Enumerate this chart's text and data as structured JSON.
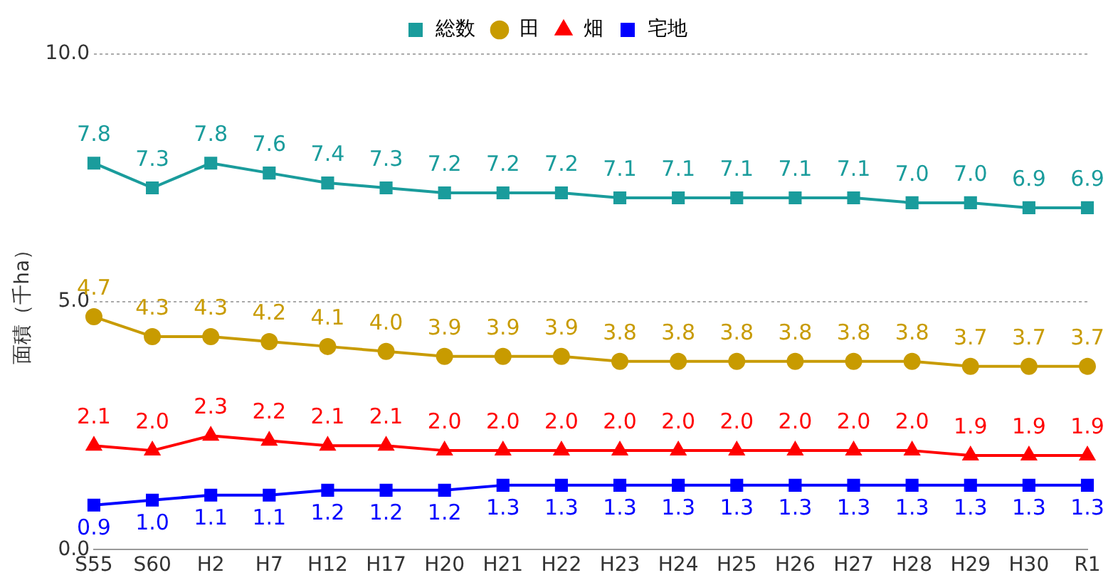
{
  "chart_data": {
    "type": "line",
    "ylabel": "面積（千ha）",
    "categories": [
      "S55",
      "S60",
      "H2",
      "H7",
      "H12",
      "H17",
      "H20",
      "H21",
      "H22",
      "H23",
      "H24",
      "H25",
      "H26",
      "H27",
      "H28",
      "H29",
      "H30",
      "R1"
    ],
    "series": [
      {
        "name": "総数",
        "color": "#1a9c9c",
        "marker": "square",
        "values": [
          7.8,
          7.3,
          7.8,
          7.6,
          7.4,
          7.3,
          7.2,
          7.2,
          7.2,
          7.1,
          7.1,
          7.1,
          7.1,
          7.1,
          7.0,
          7.0,
          6.9,
          6.9
        ],
        "value_labels": [
          "7.8",
          "7.3",
          "7.8",
          "7.6",
          "7.4",
          "7.3",
          "7.2",
          "7.2",
          "7.2",
          "7.1",
          "7.1",
          "7.1",
          "7.1",
          "7.1",
          "7.0",
          "7.0",
          "6.9",
          "6.9"
        ]
      },
      {
        "name": "田",
        "color": "#c89b00",
        "marker": "circle",
        "values": [
          4.7,
          4.3,
          4.3,
          4.2,
          4.1,
          4.0,
          3.9,
          3.9,
          3.9,
          3.8,
          3.8,
          3.8,
          3.8,
          3.8,
          3.8,
          3.7,
          3.7,
          3.7
        ],
        "value_labels": [
          "4.7",
          "4.3",
          "4.3",
          "4.2",
          "4.1",
          "4.0",
          "3.9",
          "3.9",
          "3.9",
          "3.8",
          "3.8",
          "3.8",
          "3.8",
          "3.8",
          "3.8",
          "3.7",
          "3.7",
          "3.7"
        ]
      },
      {
        "name": "畑",
        "color": "#ff0000",
        "marker": "triangle",
        "values": [
          2.1,
          2.0,
          2.3,
          2.2,
          2.1,
          2.1,
          2.0,
          2.0,
          2.0,
          2.0,
          2.0,
          2.0,
          2.0,
          2.0,
          2.0,
          1.9,
          1.9,
          1.9
        ],
        "value_labels": [
          "2.1",
          "2.0",
          "2.3",
          "2.2",
          "2.1",
          "2.1",
          "2.0",
          "2.0",
          "2.0",
          "2.0",
          "2.0",
          "2.0",
          "2.0",
          "2.0",
          "2.0",
          "1.9",
          "1.9",
          "1.9"
        ]
      },
      {
        "name": "宅地",
        "color": "#0000ff",
        "marker": "square",
        "values": [
          0.9,
          1.0,
          1.1,
          1.1,
          1.2,
          1.2,
          1.2,
          1.3,
          1.3,
          1.3,
          1.3,
          1.3,
          1.3,
          1.3,
          1.3,
          1.3,
          1.3,
          1.3
        ],
        "value_labels": [
          "0.9",
          "1.0",
          "1.1",
          "1.1",
          "1.2",
          "1.2",
          "1.2",
          "1.3",
          "1.3",
          "1.3",
          "1.3",
          "1.3",
          "1.3",
          "1.3",
          "1.3",
          "1.3",
          "1.3",
          "1.3"
        ]
      }
    ],
    "ylim": [
      0,
      10
    ],
    "yticks": [
      {
        "value": 0,
        "label": "0.0"
      },
      {
        "value": 5,
        "label": "5.0"
      },
      {
        "value": 10,
        "label": "10.0"
      }
    ],
    "grid": "y",
    "legend": "top",
    "line_style": "solid"
  }
}
